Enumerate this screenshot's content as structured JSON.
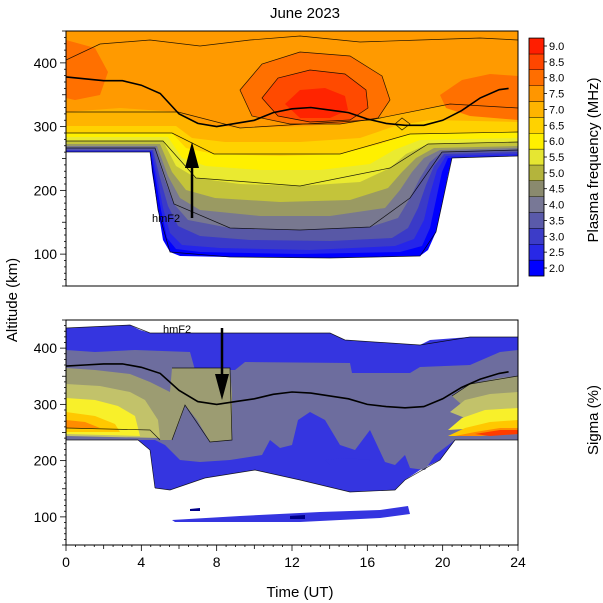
{
  "chart_data": [
    {
      "type": "heatmap",
      "title": "June 2023",
      "ylabel": "Altitude (km)",
      "xlim": [
        0,
        24
      ],
      "ylim": [
        50,
        450
      ],
      "yticks": [
        100,
        200,
        300,
        400
      ],
      "colorbar": {
        "label": "Plasma frequency (MHz)",
        "levels": [
          2.0,
          2.5,
          3.0,
          3.5,
          4.0,
          4.5,
          5.0,
          5.5,
          6.0,
          6.5,
          7.0,
          7.5,
          8.0,
          8.5,
          9.0
        ],
        "level_labels": [
          "2.0",
          "2.5",
          "3.0",
          "3.5",
          "4.0",
          "4.5",
          "5.0",
          "5.5",
          "6.0",
          "6.5",
          "7.0",
          "7.5",
          "8.0",
          "8.5",
          "9.0"
        ],
        "colors": [
          "#0000ff",
          "#2828e6",
          "#3c3cc8",
          "#5a5aaa",
          "#787896",
          "#8a8a6e",
          "#b4b43c",
          "#e6e632",
          "#fff000",
          "#ffd200",
          "#ffb400",
          "#ff9600",
          "#ff6e00",
          "#ff4600",
          "#ff1e00"
        ]
      },
      "hmF2_label": "hmF2",
      "hmF2": {
        "x": [
          0,
          1,
          2,
          3,
          4,
          5,
          6,
          7,
          8,
          9,
          10,
          11,
          12,
          13,
          14,
          15,
          16,
          17,
          18,
          19,
          20,
          21,
          22,
          23,
          23.5
        ],
        "y": [
          378,
          375,
          372,
          372,
          365,
          352,
          320,
          305,
          300,
          305,
          310,
          322,
          328,
          330,
          326,
          322,
          312,
          305,
          302,
          302,
          310,
          325,
          345,
          358,
          360
        ]
      }
    },
    {
      "type": "heatmap",
      "xlabel": "Time (UT)",
      "ylabel": "Altitude (km)",
      "xlim": [
        0,
        24
      ],
      "ylim": [
        50,
        450
      ],
      "xticks": [
        0,
        4,
        8,
        12,
        16,
        20,
        24
      ],
      "yticks": [
        100,
        200,
        300,
        400
      ],
      "colorbar_label": "Sigma (%)",
      "hmF2_label": "hmF2",
      "hmF2": {
        "x": [
          0,
          1,
          2,
          3,
          4,
          5,
          6,
          7,
          8,
          9,
          10,
          11,
          12,
          13,
          14,
          15,
          16,
          17,
          18,
          19,
          20,
          21,
          22,
          23,
          23.5
        ],
        "y": [
          368,
          370,
          372,
          372,
          366,
          355,
          325,
          305,
          300,
          305,
          310,
          318,
          322,
          320,
          315,
          310,
          300,
          296,
          294,
          296,
          310,
          330,
          345,
          355,
          358
        ]
      }
    }
  ],
  "colors": {
    "blue": "#3535e0",
    "slate": "#6d6d9e",
    "olive": "#9c9c72",
    "khaki": "#c2c26a",
    "yellow": "#f8f02a",
    "gold": "#ffc800",
    "orange": "#ff8c00",
    "red": "#ff3c00"
  }
}
